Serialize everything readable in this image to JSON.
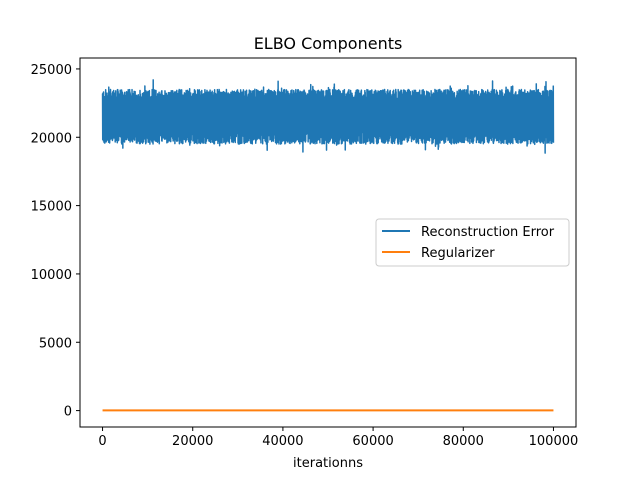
{
  "chart_data": {
    "type": "line",
    "title": "ELBO Components",
    "xlabel": "iterationns",
    "ylabel": "",
    "xlim": [
      -5000,
      105000
    ],
    "ylim": [
      -1200,
      25800
    ],
    "xticks": [
      0,
      20000,
      40000,
      60000,
      80000,
      100000
    ],
    "yticks": [
      0,
      5000,
      10000,
      15000,
      20000,
      25000
    ],
    "grid": false,
    "legend_position": "center-right",
    "series": [
      {
        "name": "Reconstruction Error",
        "color": "#1f77b4",
        "x_range": [
          0,
          100000
        ],
        "typical_band": [
          19500,
          23500
        ],
        "approx_min": 18800,
        "approx_max": 24700,
        "mean": 21500
      },
      {
        "name": "Regularizer",
        "color": "#ff7f0e",
        "x": [
          0,
          100000
        ],
        "values": [
          20,
          20
        ]
      }
    ]
  }
}
